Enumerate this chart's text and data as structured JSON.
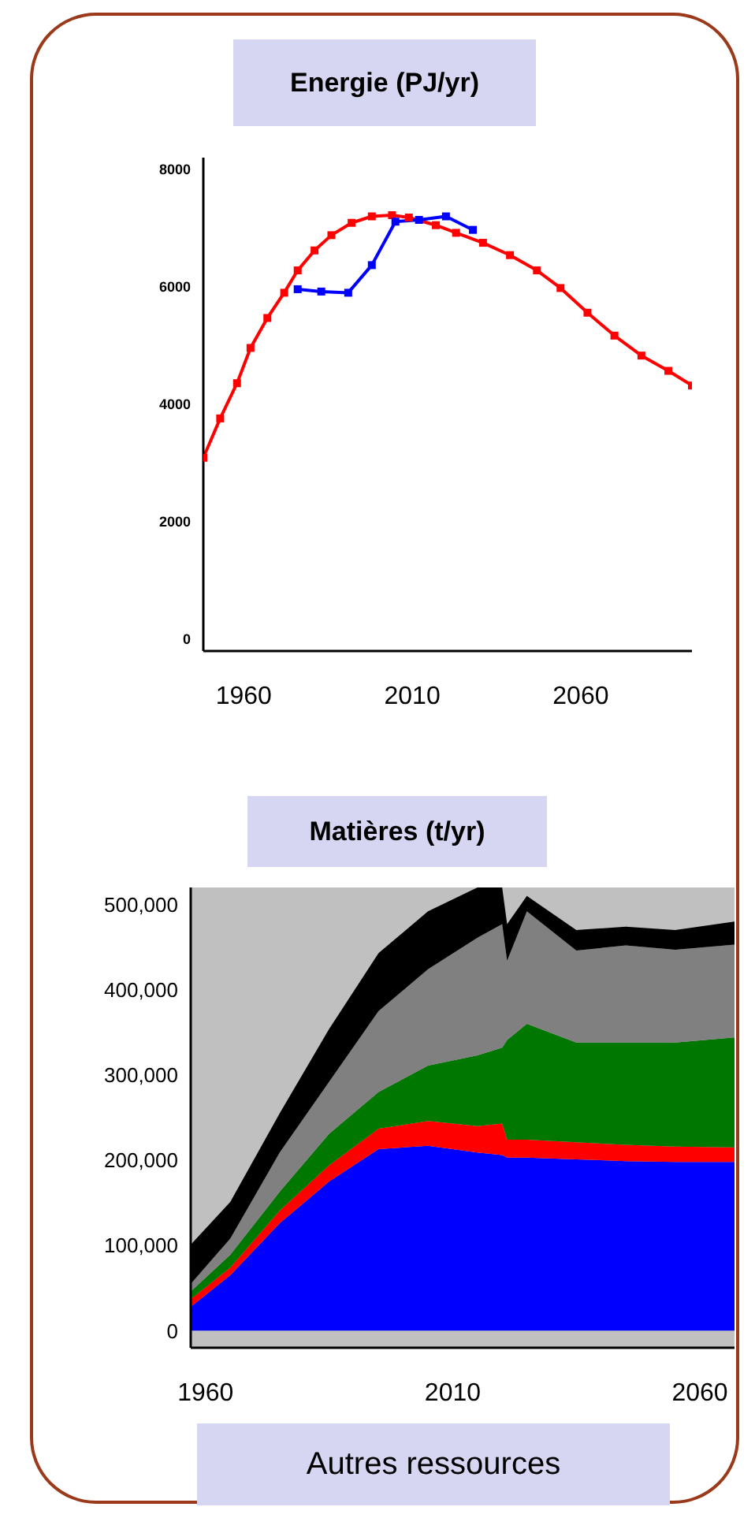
{
  "chart_data": [
    {
      "type": "line",
      "title": "Energie (PJ/yr)",
      "marker": "square",
      "grid": false,
      "xlim": [
        1948,
        2093
      ],
      "xticks": [
        1960,
        2010,
        2060
      ],
      "ylim": [
        -200,
        8200
      ],
      "yticks": [
        0,
        2000,
        4000,
        6000,
        8000
      ],
      "series": [
        {
          "color": "#ff0000",
          "x": [
            1948,
            1953,
            1958,
            1962,
            1967,
            1972,
            1976,
            1981,
            1986,
            1992,
            1998,
            2004,
            2009,
            2017,
            2023,
            2031,
            2039,
            2047,
            2054,
            2062,
            2070,
            2078,
            2086,
            2093
          ],
          "values": [
            3090,
            3760,
            4360,
            4960,
            5470,
            5900,
            6280,
            6620,
            6880,
            7090,
            7200,
            7220,
            7180,
            7050,
            6920,
            6750,
            6540,
            6280,
            5980,
            5560,
            5170,
            4830,
            4570,
            4320
          ]
        },
        {
          "color": "#0000ff",
          "x": [
            1976,
            1983,
            1991,
            1998,
            2005,
            2012,
            2020,
            2028
          ],
          "values": [
            5960,
            5920,
            5900,
            6370,
            7110,
            7140,
            7200,
            6970
          ]
        }
      ]
    },
    {
      "type": "area",
      "stacked": true,
      "title": "Matières (t/yr)",
      "grid": false,
      "xlim": [
        1957,
        2067
      ],
      "xticks": [
        1960,
        2010,
        2060
      ],
      "ylim": [
        -20000,
        520000
      ],
      "yticks": [
        {
          "value": 0,
          "label": "0"
        },
        {
          "value": 100000,
          "label": "100,000"
        },
        {
          "value": 200000,
          "label": "200,000"
        },
        {
          "value": 300000,
          "label": "300,000"
        },
        {
          "value": 400000,
          "label": "400,000"
        },
        {
          "value": 500000,
          "label": "500,000"
        }
      ],
      "x": [
        1957,
        1965,
        1975,
        1985,
        1995,
        2005,
        2015,
        2020,
        2021,
        2025,
        2035,
        2045,
        2055,
        2067
      ],
      "series": [
        {
          "color": "#0000ff",
          "values": [
            28000,
            65000,
            126000,
            175000,
            213000,
            217000,
            209000,
            206000,
            203000,
            203000,
            201000,
            199000,
            198000,
            198000
          ]
        },
        {
          "color": "#ff0000",
          "values": [
            9000,
            9000,
            15000,
            19000,
            24000,
            29000,
            31000,
            37000,
            21000,
            21000,
            20000,
            19000,
            18000,
            17000
          ]
        },
        {
          "color": "#007700",
          "values": [
            9000,
            15000,
            22000,
            37000,
            43000,
            65000,
            83000,
            89000,
            117000,
            136000,
            117000,
            120000,
            122000,
            129000
          ]
        },
        {
          "color": "#808080",
          "values": [
            9000,
            19000,
            46000,
            61000,
            95000,
            113000,
            138000,
            145000,
            93000,
            132000,
            108000,
            114000,
            109000,
            109000
          ]
        },
        {
          "color": "#000000",
          "values": [
            46000,
            43000,
            46000,
            62000,
            68000,
            68000,
            59000,
            43000,
            43000,
            18000,
            24000,
            22000,
            23000,
            27000
          ]
        }
      ],
      "annotations": [
        "Autres ressources"
      ]
    }
  ]
}
